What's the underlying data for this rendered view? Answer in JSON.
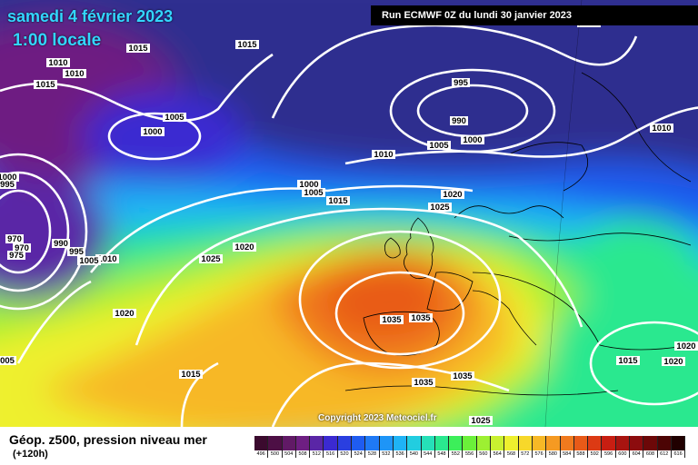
{
  "header": {
    "date_line": "samedi 4 février 2023",
    "time_line": "1:00 locale",
    "run": "Run ECMWF 0Z du lundi 30 janvier 2023"
  },
  "copyright": "Copyright 2023 Meteociel.fr",
  "legend": {
    "title": "Géop. z500, pression niveau mer",
    "subtitle": "(+120h)",
    "scale": [
      {
        "label": "496",
        "color": "#3b0a2e"
      },
      {
        "label": "500",
        "color": "#4d0f45"
      },
      {
        "label": "504",
        "color": "#611a66"
      },
      {
        "label": "508",
        "color": "#6e1f82"
      },
      {
        "label": "512",
        "color": "#5a26a6"
      },
      {
        "label": "516",
        "color": "#3b2ad1"
      },
      {
        "label": "520",
        "color": "#2a3fe0"
      },
      {
        "label": "524",
        "color": "#1f5cf0"
      },
      {
        "label": "528",
        "color": "#1f79f5"
      },
      {
        "label": "532",
        "color": "#1e95f7"
      },
      {
        "label": "536",
        "color": "#1fb3f5"
      },
      {
        "label": "540",
        "color": "#22cde0"
      },
      {
        "label": "544",
        "color": "#26e0b8"
      },
      {
        "label": "548",
        "color": "#2ae88f"
      },
      {
        "label": "552",
        "color": "#3cef5a"
      },
      {
        "label": "556",
        "color": "#6bf03a"
      },
      {
        "label": "560",
        "color": "#9df032"
      },
      {
        "label": "564",
        "color": "#c9f030"
      },
      {
        "label": "568",
        "color": "#eef02e"
      },
      {
        "label": "572",
        "color": "#f7d82a"
      },
      {
        "label": "576",
        "color": "#f7b826"
      },
      {
        "label": "580",
        "color": "#f59a22"
      },
      {
        "label": "584",
        "color": "#f07a1e"
      },
      {
        "label": "588",
        "color": "#e85a18"
      },
      {
        "label": "592",
        "color": "#dc3a14"
      },
      {
        "label": "596",
        "color": "#c81e12"
      },
      {
        "label": "600",
        "color": "#a81410"
      },
      {
        "label": "604",
        "color": "#8c0c0e"
      },
      {
        "label": "608",
        "color": "#6c0808"
      },
      {
        "label": "612",
        "color": "#4c0404"
      },
      {
        "label": "616",
        "color": "#200000"
      }
    ]
  },
  "isobars": [
    {
      "text": "1015",
      "key": "a"
    },
    {
      "text": "1010",
      "key": "b"
    },
    {
      "text": "1010",
      "key": "c"
    },
    {
      "text": "1015",
      "key": "d"
    },
    {
      "text": "1015",
      "key": "e"
    },
    {
      "text": "1005",
      "key": "f"
    },
    {
      "text": "1000",
      "key": "g"
    },
    {
      "text": "995",
      "key": "h"
    },
    {
      "text": "990",
      "key": "i"
    },
    {
      "text": "1005",
      "key": "j"
    },
    {
      "text": "1000",
      "key": "k"
    },
    {
      "text": "1010",
      "key": "l"
    },
    {
      "text": "1010",
      "key": "m"
    },
    {
      "text": "1000",
      "key": "n"
    },
    {
      "text": "1005",
      "key": "o"
    },
    {
      "text": "1015",
      "key": "p"
    },
    {
      "text": "1020",
      "key": "q"
    },
    {
      "text": "1025",
      "key": "r"
    },
    {
      "text": "1000",
      "key": "s"
    },
    {
      "text": "995",
      "key": "t"
    },
    {
      "text": "970",
      "key": "u"
    },
    {
      "text": "970",
      "key": "v"
    },
    {
      "text": "975",
      "key": "w"
    },
    {
      "text": "990",
      "key": "x"
    },
    {
      "text": "995",
      "key": "y"
    },
    {
      "text": "1010",
      "key": "z"
    },
    {
      "text": "1020",
      "key": "aa"
    },
    {
      "text": "1025",
      "key": "ab"
    },
    {
      "text": "1020",
      "key": "ac"
    },
    {
      "text": "1035",
      "key": "ad"
    },
    {
      "text": "1035",
      "key": "ae"
    },
    {
      "text": "1015",
      "key": "af"
    },
    {
      "text": "1035",
      "key": "ag"
    },
    {
      "text": "1035",
      "key": "ah"
    },
    {
      "text": "1025",
      "key": "ai"
    },
    {
      "text": "1015",
      "key": "aj"
    },
    {
      "text": "1020",
      "key": "ak"
    },
    {
      "text": "1020",
      "key": "al"
    },
    {
      "text": "1015",
      "key": "am"
    },
    {
      "text": "005",
      "key": "an"
    },
    {
      "text": "1005",
      "key": "ao"
    }
  ]
}
